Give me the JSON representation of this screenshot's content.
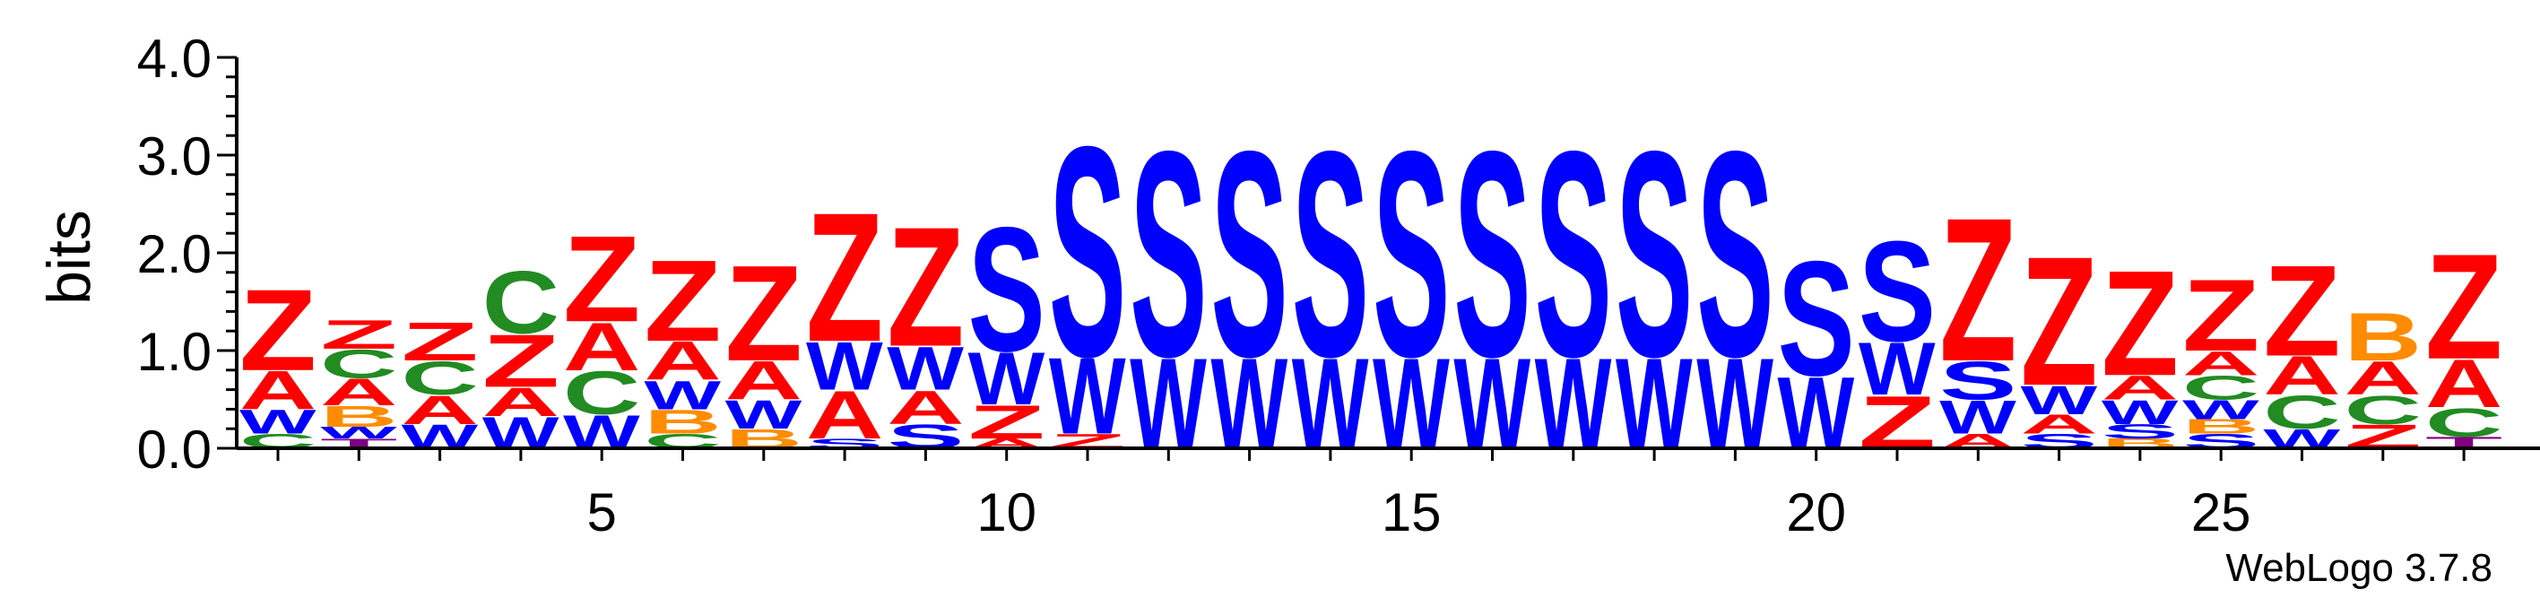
{
  "chart_data": {
    "type": "sequence-logo",
    "ylabel": "bits",
    "ylim": [
      0,
      4.0
    ],
    "y_ticks": [
      "0.0",
      "1.0",
      "2.0",
      "3.0",
      "4.0"
    ],
    "x_ticks": [
      "5",
      "10",
      "15",
      "20",
      "25"
    ],
    "x_tick_values": [
      5,
      10,
      15,
      20,
      25
    ],
    "positions_count": 28,
    "colors": {
      "Z": "#ff0000",
      "A": "#ff0000",
      "S": "#0000ff",
      "W": "#0000ff",
      "C": "#228b22",
      "B": "#ff8c00",
      "T": "#800080"
    },
    "columns": [
      {
        "position": 1,
        "stack": [
          {
            "letter": "C",
            "bits": 0.15
          },
          {
            "letter": "W",
            "bits": 0.25
          },
          {
            "letter": "A",
            "bits": 0.4
          },
          {
            "letter": "Z",
            "bits": 0.85
          }
        ]
      },
      {
        "position": 2,
        "stack": [
          {
            "letter": "T",
            "bits": 0.1
          },
          {
            "letter": "W",
            "bits": 0.12
          },
          {
            "letter": "B",
            "bits": 0.22
          },
          {
            "letter": "A",
            "bits": 0.28
          },
          {
            "letter": "C",
            "bits": 0.3
          },
          {
            "letter": "Z",
            "bits": 0.3
          }
        ]
      },
      {
        "position": 3,
        "stack": [
          {
            "letter": "W",
            "bits": 0.25
          },
          {
            "letter": "A",
            "bits": 0.3
          },
          {
            "letter": "C",
            "bits": 0.35
          },
          {
            "letter": "Z",
            "bits": 0.4
          }
        ]
      },
      {
        "position": 4,
        "stack": [
          {
            "letter": "W",
            "bits": 0.33
          },
          {
            "letter": "A",
            "bits": 0.3
          },
          {
            "letter": "Z",
            "bits": 0.55
          },
          {
            "letter": "C",
            "bits": 0.65
          }
        ]
      },
      {
        "position": 5,
        "stack": [
          {
            "letter": "W",
            "bits": 0.35
          },
          {
            "letter": "C",
            "bits": 0.45
          },
          {
            "letter": "A",
            "bits": 0.5
          },
          {
            "letter": "Z",
            "bits": 0.9
          }
        ]
      },
      {
        "position": 6,
        "stack": [
          {
            "letter": "C",
            "bits": 0.15
          },
          {
            "letter": "B",
            "bits": 0.25
          },
          {
            "letter": "W",
            "bits": 0.3
          },
          {
            "letter": "A",
            "bits": 0.4
          },
          {
            "letter": "Z",
            "bits": 0.85
          }
        ]
      },
      {
        "position": 7,
        "stack": [
          {
            "letter": "B",
            "bits": 0.2
          },
          {
            "letter": "W",
            "bits": 0.3
          },
          {
            "letter": "A",
            "bits": 0.4
          },
          {
            "letter": "Z",
            "bits": 1.0
          }
        ]
      },
      {
        "position": 8,
        "stack": [
          {
            "letter": "S",
            "bits": 0.1
          },
          {
            "letter": "A",
            "bits": 0.5
          },
          {
            "letter": "W",
            "bits": 0.5
          },
          {
            "letter": "Z",
            "bits": 1.35
          }
        ]
      },
      {
        "position": 9,
        "stack": [
          {
            "letter": "S",
            "bits": 0.25
          },
          {
            "letter": "A",
            "bits": 0.35
          },
          {
            "letter": "W",
            "bits": 0.45
          },
          {
            "letter": "Z",
            "bits": 1.25
          }
        ]
      },
      {
        "position": 10,
        "stack": [
          {
            "letter": "A",
            "bits": 0.1
          },
          {
            "letter": "Z",
            "bits": 0.35
          },
          {
            "letter": "W",
            "bits": 0.55
          },
          {
            "letter": "S",
            "bits": 1.3
          }
        ]
      },
      {
        "position": 11,
        "stack": [
          {
            "letter": "Z",
            "bits": 0.15
          },
          {
            "letter": "W",
            "bits": 0.8
          },
          {
            "letter": "S",
            "bits": 2.2
          }
        ]
      },
      {
        "position": 12,
        "stack": [
          {
            "letter": "W",
            "bits": 0.95
          },
          {
            "letter": "S",
            "bits": 2.15
          }
        ]
      },
      {
        "position": 13,
        "stack": [
          {
            "letter": "W",
            "bits": 0.95
          },
          {
            "letter": "S",
            "bits": 2.15
          }
        ]
      },
      {
        "position": 14,
        "stack": [
          {
            "letter": "W",
            "bits": 0.95
          },
          {
            "letter": "S",
            "bits": 2.15
          }
        ]
      },
      {
        "position": 15,
        "stack": [
          {
            "letter": "W",
            "bits": 0.95
          },
          {
            "letter": "S",
            "bits": 2.15
          }
        ]
      },
      {
        "position": 16,
        "stack": [
          {
            "letter": "W",
            "bits": 0.95
          },
          {
            "letter": "S",
            "bits": 2.15
          }
        ]
      },
      {
        "position": 17,
        "stack": [
          {
            "letter": "W",
            "bits": 0.95
          },
          {
            "letter": "S",
            "bits": 2.15
          }
        ]
      },
      {
        "position": 18,
        "stack": [
          {
            "letter": "W",
            "bits": 0.95
          },
          {
            "letter": "S",
            "bits": 2.15
          }
        ]
      },
      {
        "position": 19,
        "stack": [
          {
            "letter": "W",
            "bits": 0.95
          },
          {
            "letter": "S",
            "bits": 2.15
          }
        ]
      },
      {
        "position": 20,
        "stack": [
          {
            "letter": "W",
            "bits": 0.75
          },
          {
            "letter": "S",
            "bits": 1.2
          }
        ]
      },
      {
        "position": 21,
        "stack": [
          {
            "letter": "Z",
            "bits": 0.55
          },
          {
            "letter": "W",
            "bits": 0.55
          },
          {
            "letter": "S",
            "bits": 1.05
          }
        ]
      },
      {
        "position": 22,
        "stack": [
          {
            "letter": "A",
            "bits": 0.15
          },
          {
            "letter": "W",
            "bits": 0.35
          },
          {
            "letter": "S",
            "bits": 0.4
          },
          {
            "letter": "Z",
            "bits": 1.5
          }
        ]
      },
      {
        "position": 23,
        "stack": [
          {
            "letter": "S",
            "bits": 0.15
          },
          {
            "letter": "A",
            "bits": 0.2
          },
          {
            "letter": "W",
            "bits": 0.3
          },
          {
            "letter": "Z",
            "bits": 1.35
          }
        ]
      },
      {
        "position": 24,
        "stack": [
          {
            "letter": "B",
            "bits": 0.1
          },
          {
            "letter": "S",
            "bits": 0.15
          },
          {
            "letter": "W",
            "bits": 0.25
          },
          {
            "letter": "A",
            "bits": 0.25
          },
          {
            "letter": "Z",
            "bits": 1.1
          }
        ]
      },
      {
        "position": 25,
        "stack": [
          {
            "letter": "S",
            "bits": 0.15
          },
          {
            "letter": "B",
            "bits": 0.15
          },
          {
            "letter": "W",
            "bits": 0.2
          },
          {
            "letter": "C",
            "bits": 0.25
          },
          {
            "letter": "A",
            "bits": 0.25
          },
          {
            "letter": "Z",
            "bits": 0.75
          }
        ]
      },
      {
        "position": 26,
        "stack": [
          {
            "letter": "W",
            "bits": 0.2
          },
          {
            "letter": "C",
            "bits": 0.35
          },
          {
            "letter": "A",
            "bits": 0.4
          },
          {
            "letter": "Z",
            "bits": 0.95
          }
        ]
      },
      {
        "position": 27,
        "stack": [
          {
            "letter": "Z",
            "bits": 0.25
          },
          {
            "letter": "C",
            "bits": 0.3
          },
          {
            "letter": "A",
            "bits": 0.35
          },
          {
            "letter": "B",
            "bits": 0.5
          }
        ]
      },
      {
        "position": 28,
        "stack": [
          {
            "letter": "T",
            "bits": 0.12
          },
          {
            "letter": "C",
            "bits": 0.3
          },
          {
            "letter": "A",
            "bits": 0.5
          },
          {
            "letter": "Z",
            "bits": 1.1
          }
        ]
      }
    ]
  },
  "footer": {
    "credit": "WebLogo 3.7.8"
  }
}
